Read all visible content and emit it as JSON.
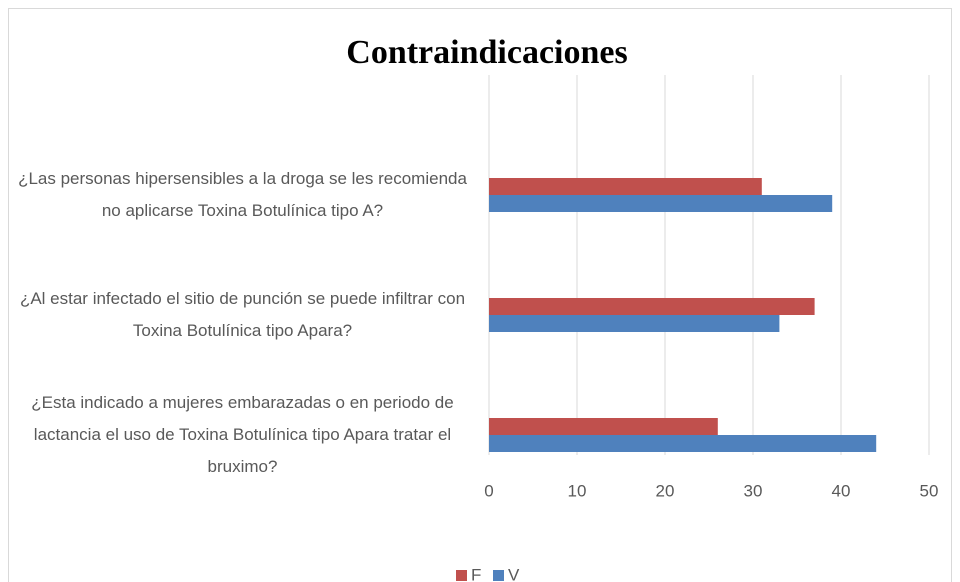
{
  "chart_data": {
    "type": "hbar",
    "title": "Contraindicaciones",
    "categories": [
      "¿Las personas hipersensibles a la droga se les recomienda no aplicarse Toxina Botulínica tipo A?",
      "¿Al estar infectado el sitio de punción se puede infiltrar con Toxina Botulínica tipo Apara?",
      "¿Esta indicado a mujeres embarazadas o en periodo de lactancia el uso de Toxina Botulínica tipo Apara tratar el bruximo?"
    ],
    "series": [
      {
        "name": "F",
        "color": "#c0504d",
        "values": [
          31,
          37,
          26
        ]
      },
      {
        "name": "V",
        "color": "#4f81bd",
        "values": [
          39,
          33,
          44
        ]
      }
    ],
    "xlim": [
      0,
      50
    ],
    "xticks": [
      0,
      10,
      20,
      30,
      40,
      50
    ],
    "grid": true,
    "legend": "bottom"
  }
}
